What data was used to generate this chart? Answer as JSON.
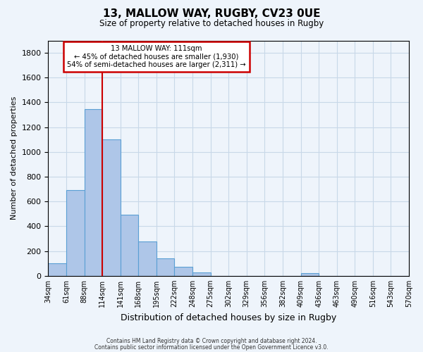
{
  "title": "13, MALLOW WAY, RUGBY, CV23 0UE",
  "subtitle": "Size of property relative to detached houses in Rugby",
  "xlabel": "Distribution of detached houses by size in Rugby",
  "ylabel": "Number of detached properties",
  "bin_labels": [
    "34sqm",
    "61sqm",
    "88sqm",
    "114sqm",
    "141sqm",
    "168sqm",
    "195sqm",
    "222sqm",
    "248sqm",
    "275sqm",
    "302sqm",
    "329sqm",
    "356sqm",
    "382sqm",
    "409sqm",
    "436sqm",
    "463sqm",
    "490sqm",
    "516sqm",
    "543sqm",
    "570sqm"
  ],
  "bar_values": [
    100,
    695,
    1345,
    1100,
    495,
    275,
    140,
    70,
    30,
    0,
    0,
    0,
    0,
    0,
    20,
    0,
    0,
    0,
    0,
    0
  ],
  "bar_color": "#aec6e8",
  "bar_edge_color": "#5a9fd4",
  "grid_color": "#c8d8e8",
  "background_color": "#eef4fb",
  "vline_position": 2.5,
  "vline_color": "#cc0000",
  "ylim": [
    0,
    1900
  ],
  "yticks": [
    0,
    200,
    400,
    600,
    800,
    1000,
    1200,
    1400,
    1600,
    1800
  ],
  "annotation_title": "13 MALLOW WAY: 111sqm",
  "annotation_line1": "← 45% of detached houses are smaller (1,930)",
  "annotation_line2": "54% of semi-detached houses are larger (2,311) →",
  "annotation_box_color": "#ffffff",
  "annotation_border_color": "#cc0000",
  "footer1": "Contains HM Land Registry data © Crown copyright and database right 2024.",
  "footer2": "Contains public sector information licensed under the Open Government Licence v3.0."
}
